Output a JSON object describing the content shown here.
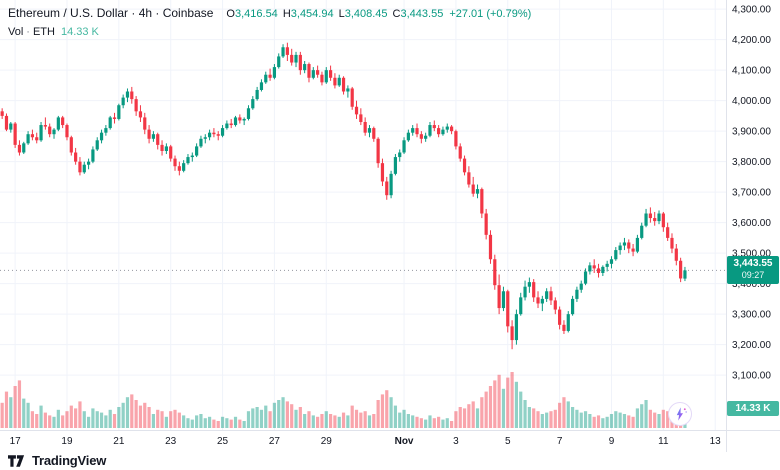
{
  "legend": {
    "title": "Ethereum / U.S. Dollar · 4h · Coinbase",
    "ohlc": [
      {
        "label": "O",
        "value": "3,416.54"
      },
      {
        "label": "H",
        "value": "3,454.94"
      },
      {
        "label": "L",
        "value": "3,408.45"
      },
      {
        "label": "C",
        "value": "3,443.55"
      }
    ],
    "change": "+27.01 (+0.79%)",
    "volume_row": {
      "label": "Vol",
      "separator": "·",
      "symbol": "ETH",
      "value": "14.33 K"
    }
  },
  "price_badge": {
    "price": "3,443.55",
    "countdown": "09:27"
  },
  "volume_badge": {
    "value": "14.33 K"
  },
  "footer": {
    "brand": "TradingView"
  },
  "boost_button": {
    "icon": "lightning-icon"
  },
  "colors": {
    "up": "#089981",
    "down": "#f23645",
    "volume_up": "rgba(8,153,129,0.45)",
    "volume_down": "rgba(242,54,69,0.45)",
    "grid": "#f0f3fa",
    "axis_text": "#131722",
    "badge_price_bg": "#089981",
    "badge_volume_bg": "#45b8a1",
    "price_line": "#9598a1",
    "change_text": "#089981"
  },
  "chart_data": {
    "type": "candlestick",
    "title": "Ethereum / U.S. Dollar · 4h · Coinbase",
    "symbol": "ETH/USD",
    "interval": "4h",
    "exchange": "Coinbase",
    "ylim": [
      3100,
      4400
    ],
    "price_gridlines": [
      4400,
      4300,
      4200,
      4100,
      4000,
      3900,
      3800,
      3700,
      3600,
      3500,
      3400,
      3300,
      3200,
      3100
    ],
    "time_labels": [
      {
        "label": "17",
        "slot": 3
      },
      {
        "label": "19",
        "slot": 15
      },
      {
        "label": "21",
        "slot": 27
      },
      {
        "label": "23",
        "slot": 39
      },
      {
        "label": "25",
        "slot": 51
      },
      {
        "label": "27",
        "slot": 63
      },
      {
        "label": "29",
        "slot": 75
      },
      {
        "label": "Nov",
        "slot": 93,
        "month": true
      },
      {
        "label": "3",
        "slot": 105
      },
      {
        "label": "5",
        "slot": 117
      },
      {
        "label": "7",
        "slot": 129
      },
      {
        "label": "9",
        "slot": 141
      },
      {
        "label": "11",
        "slot": 153
      },
      {
        "label": "13",
        "slot": 165
      }
    ],
    "total_slots": 168,
    "last_price": 3443.55,
    "last_volume_k": 14.33,
    "volume_unit": "K",
    "candles": [
      [
        3965,
        3975,
        3940,
        3950,
        18
      ],
      [
        3950,
        3958,
        3900,
        3905,
        26
      ],
      [
        3905,
        3930,
        3895,
        3925,
        22
      ],
      [
        3925,
        3930,
        3845,
        3855,
        30
      ],
      [
        3855,
        3870,
        3820,
        3830,
        34
      ],
      [
        3830,
        3865,
        3825,
        3860,
        21
      ],
      [
        3860,
        3900,
        3855,
        3890,
        18
      ],
      [
        3890,
        3905,
        3870,
        3880,
        12
      ],
      [
        3880,
        3895,
        3860,
        3870,
        10
      ],
      [
        3870,
        3930,
        3865,
        3920,
        16
      ],
      [
        3920,
        3945,
        3905,
        3915,
        11
      ],
      [
        3915,
        3925,
        3880,
        3890,
        9
      ],
      [
        3890,
        3910,
        3875,
        3905,
        8
      ],
      [
        3905,
        3950,
        3900,
        3945,
        13
      ],
      [
        3945,
        3950,
        3910,
        3920,
        9
      ],
      [
        3920,
        3925,
        3870,
        3880,
        12
      ],
      [
        3880,
        3885,
        3820,
        3830,
        16
      ],
      [
        3830,
        3845,
        3790,
        3800,
        14
      ],
      [
        3800,
        3815,
        3755,
        3765,
        19
      ],
      [
        3765,
        3800,
        3760,
        3790,
        12
      ],
      [
        3790,
        3810,
        3775,
        3800,
        8
      ],
      [
        3800,
        3850,
        3795,
        3840,
        14
      ],
      [
        3840,
        3880,
        3835,
        3870,
        12
      ],
      [
        3870,
        3905,
        3860,
        3895,
        11
      ],
      [
        3895,
        3920,
        3885,
        3910,
        9
      ],
      [
        3910,
        3950,
        3905,
        3945,
        13
      ],
      [
        3945,
        3960,
        3925,
        3940,
        10
      ],
      [
        3940,
        3990,
        3935,
        3985,
        15
      ],
      [
        3985,
        4020,
        3975,
        4010,
        18
      ],
      [
        4010,
        4040,
        3995,
        4030,
        22
      ],
      [
        4030,
        4045,
        3990,
        4005,
        24
      ],
      [
        4005,
        4015,
        3950,
        3965,
        20
      ],
      [
        3965,
        3985,
        3930,
        3945,
        16
      ],
      [
        3945,
        3960,
        3890,
        3905,
        18
      ],
      [
        3905,
        3920,
        3860,
        3875,
        15
      ],
      [
        3875,
        3900,
        3865,
        3890,
        10
      ],
      [
        3890,
        3895,
        3840,
        3855,
        13
      ],
      [
        3855,
        3870,
        3820,
        3835,
        12
      ],
      [
        3835,
        3860,
        3825,
        3850,
        8
      ],
      [
        3850,
        3855,
        3800,
        3810,
        12
      ],
      [
        3810,
        3820,
        3770,
        3785,
        13
      ],
      [
        3785,
        3800,
        3755,
        3770,
        11
      ],
      [
        3770,
        3805,
        3765,
        3795,
        9
      ],
      [
        3795,
        3825,
        3790,
        3815,
        7
      ],
      [
        3815,
        3830,
        3800,
        3820,
        6
      ],
      [
        3820,
        3860,
        3815,
        3850,
        9
      ],
      [
        3850,
        3885,
        3845,
        3875,
        10
      ],
      [
        3875,
        3890,
        3860,
        3880,
        7
      ],
      [
        3880,
        3905,
        3870,
        3895,
        8
      ],
      [
        3895,
        3910,
        3880,
        3890,
        6
      ],
      [
        3890,
        3900,
        3870,
        3885,
        5
      ],
      [
        3885,
        3920,
        3880,
        3910,
        8
      ],
      [
        3910,
        3935,
        3905,
        3925,
        7
      ],
      [
        3925,
        3940,
        3910,
        3920,
        6
      ],
      [
        3920,
        3950,
        3915,
        3945,
        8
      ],
      [
        3945,
        3955,
        3925,
        3935,
        6
      ],
      [
        3935,
        3945,
        3920,
        3940,
        5
      ],
      [
        3940,
        3985,
        3935,
        3975,
        12
      ],
      [
        3975,
        4015,
        3970,
        4005,
        14
      ],
      [
        4005,
        4045,
        4000,
        4035,
        15
      ],
      [
        4035,
        4070,
        4030,
        4060,
        13
      ],
      [
        4060,
        4095,
        4055,
        4085,
        16
      ],
      [
        4085,
        4105,
        4065,
        4075,
        12
      ],
      [
        4075,
        4120,
        4070,
        4110,
        18
      ],
      [
        4110,
        4155,
        4105,
        4145,
        20
      ],
      [
        4145,
        4185,
        4140,
        4175,
        22
      ],
      [
        4175,
        4190,
        4130,
        4150,
        19
      ],
      [
        4150,
        4170,
        4115,
        4125,
        17
      ],
      [
        4125,
        4160,
        4110,
        4150,
        13
      ],
      [
        4150,
        4160,
        4085,
        4100,
        15
      ],
      [
        4100,
        4130,
        4090,
        4120,
        10
      ],
      [
        4120,
        4125,
        4060,
        4075,
        12
      ],
      [
        4075,
        4110,
        4070,
        4100,
        9
      ],
      [
        4100,
        4115,
        4075,
        4085,
        8
      ],
      [
        4085,
        4095,
        4050,
        4060,
        10
      ],
      [
        4060,
        4110,
        4055,
        4100,
        12
      ],
      [
        4100,
        4115,
        4065,
        4075,
        10
      ],
      [
        4075,
        4090,
        4040,
        4050,
        9
      ],
      [
        4050,
        4085,
        4045,
        4075,
        8
      ],
      [
        4075,
        4080,
        4020,
        4030,
        11
      ],
      [
        4030,
        4050,
        4010,
        4040,
        9
      ],
      [
        4040,
        4045,
        3970,
        3980,
        16
      ],
      [
        3980,
        4000,
        3940,
        3955,
        13
      ],
      [
        3955,
        3975,
        3920,
        3930,
        11
      ],
      [
        3930,
        3945,
        3885,
        3895,
        12
      ],
      [
        3895,
        3920,
        3880,
        3910,
        9
      ],
      [
        3910,
        3915,
        3865,
        3875,
        10
      ],
      [
        3875,
        3880,
        3780,
        3795,
        20
      ],
      [
        3795,
        3810,
        3720,
        3735,
        24
      ],
      [
        3735,
        3750,
        3675,
        3690,
        27
      ],
      [
        3690,
        3770,
        3680,
        3760,
        22
      ],
      [
        3760,
        3825,
        3755,
        3815,
        16
      ],
      [
        3815,
        3840,
        3800,
        3830,
        11
      ],
      [
        3830,
        3880,
        3825,
        3870,
        13
      ],
      [
        3870,
        3905,
        3865,
        3895,
        10
      ],
      [
        3895,
        3920,
        3885,
        3910,
        9
      ],
      [
        3910,
        3925,
        3880,
        3890,
        8
      ],
      [
        3890,
        3900,
        3860,
        3875,
        7
      ],
      [
        3875,
        3895,
        3865,
        3885,
        6
      ],
      [
        3885,
        3930,
        3880,
        3920,
        9
      ],
      [
        3920,
        3935,
        3900,
        3910,
        7
      ],
      [
        3910,
        3920,
        3880,
        3890,
        8
      ],
      [
        3890,
        3915,
        3885,
        3905,
        6
      ],
      [
        3905,
        3925,
        3895,
        3915,
        7
      ],
      [
        3915,
        3920,
        3890,
        3900,
        5
      ],
      [
        3900,
        3905,
        3840,
        3850,
        12
      ],
      [
        3850,
        3860,
        3800,
        3810,
        15
      ],
      [
        3810,
        3820,
        3755,
        3765,
        14
      ],
      [
        3765,
        3785,
        3715,
        3725,
        17
      ],
      [
        3725,
        3750,
        3685,
        3695,
        19
      ],
      [
        3695,
        3725,
        3680,
        3710,
        14
      ],
      [
        3710,
        3715,
        3615,
        3630,
        22
      ],
      [
        3630,
        3645,
        3545,
        3560,
        26
      ],
      [
        3560,
        3575,
        3465,
        3480,
        30
      ],
      [
        3480,
        3495,
        3380,
        3395,
        34
      ],
      [
        3395,
        3430,
        3300,
        3320,
        38
      ],
      [
        3320,
        3390,
        3310,
        3375,
        28
      ],
      [
        3375,
        3380,
        3240,
        3260,
        36
      ],
      [
        3260,
        3280,
        3185,
        3215,
        40
      ],
      [
        3215,
        3315,
        3200,
        3300,
        33
      ],
      [
        3300,
        3370,
        3295,
        3355,
        26
      ],
      [
        3355,
        3410,
        3345,
        3390,
        20
      ],
      [
        3390,
        3420,
        3370,
        3405,
        15
      ],
      [
        3405,
        3415,
        3340,
        3355,
        14
      ],
      [
        3355,
        3375,
        3320,
        3335,
        12
      ],
      [
        3335,
        3360,
        3310,
        3350,
        10
      ],
      [
        3350,
        3385,
        3340,
        3375,
        11
      ],
      [
        3375,
        3390,
        3330,
        3345,
        12
      ],
      [
        3345,
        3355,
        3300,
        3315,
        13
      ],
      [
        3315,
        3325,
        3250,
        3265,
        18
      ],
      [
        3265,
        3280,
        3235,
        3245,
        22
      ],
      [
        3245,
        3310,
        3240,
        3300,
        19
      ],
      [
        3300,
        3360,
        3295,
        3350,
        15
      ],
      [
        3350,
        3390,
        3340,
        3380,
        13
      ],
      [
        3380,
        3410,
        3370,
        3400,
        11
      ],
      [
        3400,
        3450,
        3395,
        3440,
        12
      ],
      [
        3440,
        3470,
        3430,
        3460,
        10
      ],
      [
        3460,
        3480,
        3435,
        3450,
        8
      ],
      [
        3450,
        3465,
        3420,
        3435,
        9
      ],
      [
        3435,
        3460,
        3425,
        3455,
        7
      ],
      [
        3455,
        3475,
        3440,
        3465,
        8
      ],
      [
        3465,
        3490,
        3450,
        3480,
        10
      ],
      [
        3480,
        3520,
        3475,
        3510,
        12
      ],
      [
        3510,
        3535,
        3495,
        3525,
        11
      ],
      [
        3525,
        3550,
        3510,
        3535,
        10
      ],
      [
        3535,
        3545,
        3500,
        3515,
        9
      ],
      [
        3515,
        3530,
        3490,
        3505,
        8
      ],
      [
        3505,
        3560,
        3500,
        3550,
        14
      ],
      [
        3550,
        3600,
        3545,
        3590,
        17
      ],
      [
        3590,
        3645,
        3585,
        3630,
        20
      ],
      [
        3630,
        3650,
        3600,
        3615,
        13
      ],
      [
        3615,
        3635,
        3590,
        3605,
        11
      ],
      [
        3605,
        3640,
        3595,
        3630,
        10
      ],
      [
        3630,
        3635,
        3570,
        3585,
        13
      ],
      [
        3585,
        3600,
        3540,
        3550,
        12
      ],
      [
        3550,
        3565,
        3500,
        3515,
        14
      ],
      [
        3515,
        3530,
        3460,
        3475,
        12
      ],
      [
        3475,
        3485,
        3405,
        3417,
        16
      ],
      [
        3416.54,
        3454.94,
        3408.45,
        3443.55,
        14.33
      ]
    ]
  }
}
